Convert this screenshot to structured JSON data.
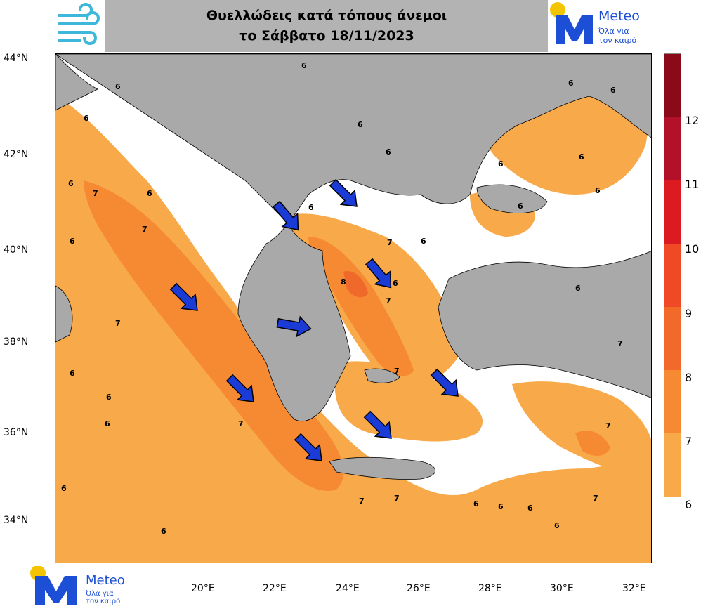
{
  "header": {
    "title_line1": "Θυελλώδεις κατά τόπους άνεμοι",
    "title_line2": "το Σάββατο 18/11/2023",
    "wind_icon": "wind-icon"
  },
  "logo": {
    "brand": "Meteo",
    "tagline_line1": "Όλα για",
    "tagline_line2": "τον καιρό",
    "letter": "M",
    "sun_color": "#f5c400",
    "blue_color": "#1c4fd6"
  },
  "axes": {
    "lat_labels": [
      "44°N",
      "42°N",
      "40°N",
      "38°N",
      "36°N",
      "34°N"
    ],
    "lon_labels": [
      "20°E",
      "22°E",
      "24°E",
      "26°E",
      "28°E",
      "30°E",
      "32°E"
    ]
  },
  "legend": {
    "labels": [
      "12",
      "11",
      "10",
      "9",
      "8",
      "7",
      "6"
    ],
    "colors": [
      "#8b0a1a",
      "#b3102a",
      "#dc1a22",
      "#ef4a25",
      "#f26a2a",
      "#f68a33",
      "#f8a949",
      "#ffffff"
    ]
  },
  "map": {
    "land_color": "#a9a9a9",
    "contour_labels": [
      "6",
      "6",
      "6",
      "6",
      "6",
      "6",
      "6",
      "6",
      "7",
      "7",
      "7",
      "7",
      "7",
      "7",
      "7",
      "6",
      "8",
      "7",
      "6",
      "6",
      "7",
      "6",
      "6",
      "6",
      "6",
      "6",
      "6",
      "6",
      "6",
      "7",
      "6",
      "6",
      "7",
      "7",
      "6",
      "6",
      "6",
      "6",
      "6",
      "6"
    ],
    "wind_arrow_color": "#1a3bd6"
  }
}
